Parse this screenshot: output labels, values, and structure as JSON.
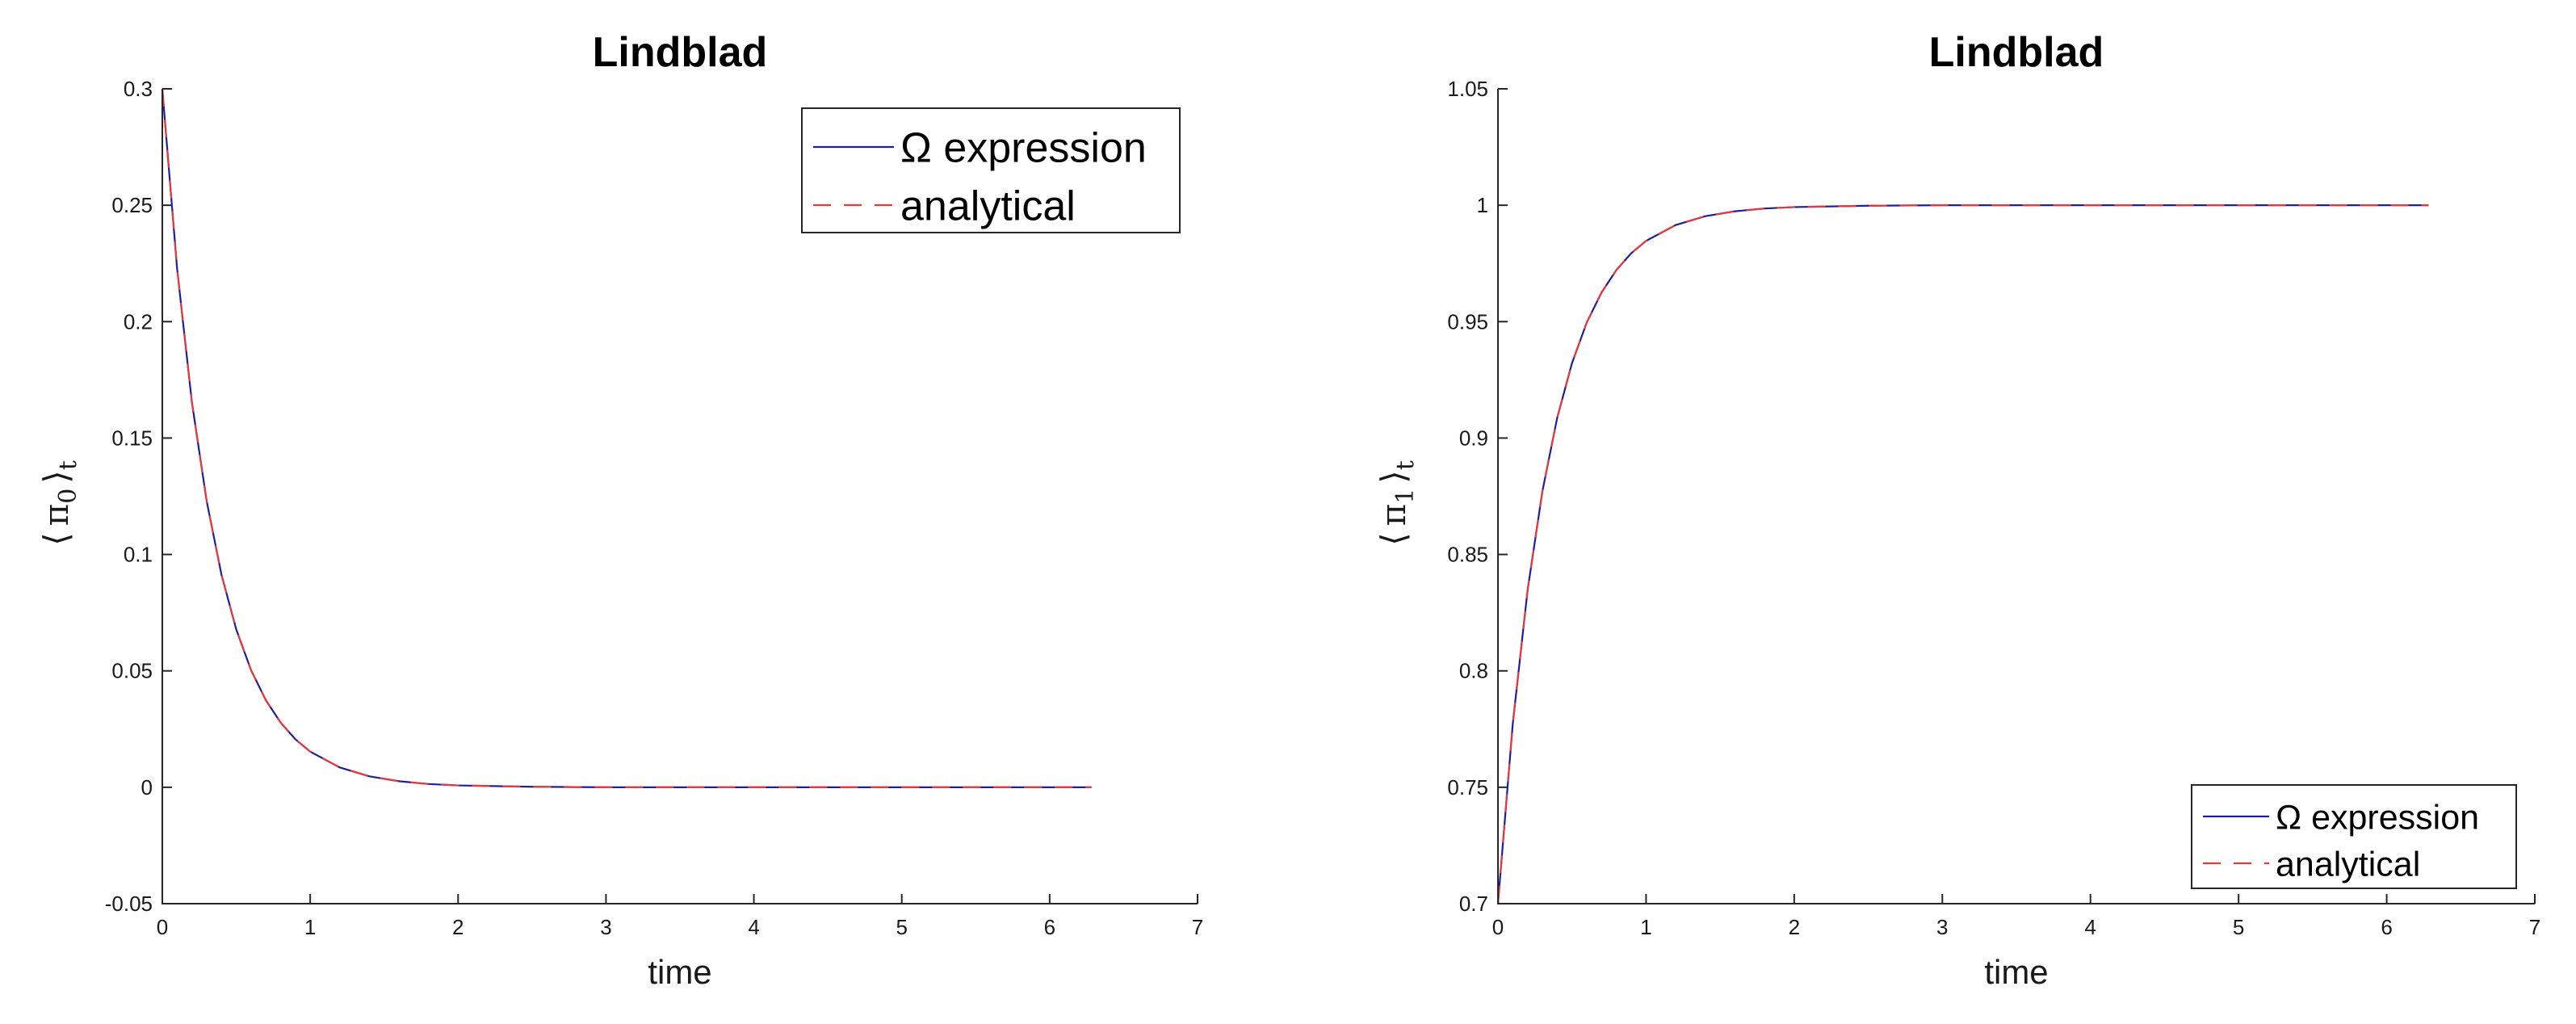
{
  "chart_data": [
    {
      "type": "line",
      "title": "Lindblad",
      "xlabel": "time",
      "ylabel": "⟨ π₀ ⟩ₜ",
      "ylabel_parts": {
        "open": "⟨",
        "symbol": "π",
        "sub": "0",
        "close": "⟩",
        "outer_sub": "t"
      },
      "xlim": [
        0,
        7
      ],
      "ylim": [
        -0.05,
        0.3
      ],
      "xticks": [
        0,
        1,
        2,
        3,
        4,
        5,
        6,
        7
      ],
      "xtick_labels": [
        "0",
        "1",
        "2",
        "3",
        "4",
        "5",
        "6",
        "7"
      ],
      "yticks": [
        -0.05,
        0,
        0.05,
        0.1,
        0.15,
        0.2,
        0.25,
        0.3
      ],
      "ytick_labels": [
        "-0.05",
        "0",
        "0.05",
        "0.1",
        "0.15",
        "0.2",
        "0.25",
        "0.3"
      ],
      "grid": false,
      "legend": "top-right",
      "series": [
        {
          "name": "Ω expression",
          "color": "#1f1f9e",
          "style": "solid",
          "x": [
            0,
            0.1,
            0.2,
            0.3,
            0.4,
            0.5,
            0.6,
            0.7,
            0.8,
            0.9,
            1.0,
            1.2,
            1.4,
            1.6,
            1.8,
            2.0,
            2.5,
            3.0,
            3.5,
            4.0,
            4.5,
            5.0,
            5.5,
            6.0,
            6.283
          ],
          "y": [
            0.3,
            0.2228,
            0.1654,
            0.1229,
            0.0913,
            0.0678,
            0.0503,
            0.0374,
            0.0278,
            0.0206,
            0.0153,
            0.0085,
            0.0047,
            0.0026,
            0.0014,
            0.0008,
            0.0002,
            0.0,
            0.0,
            0.0,
            0.0,
            0.0,
            0.0,
            0.0,
            0.0
          ]
        },
        {
          "name": "analytical",
          "color": "#e8393a",
          "style": "dashed",
          "x": [
            0,
            0.1,
            0.2,
            0.3,
            0.4,
            0.5,
            0.6,
            0.7,
            0.8,
            0.9,
            1.0,
            1.2,
            1.4,
            1.6,
            1.8,
            2.0,
            2.5,
            3.0,
            3.5,
            4.0,
            4.5,
            5.0,
            5.5,
            6.0,
            6.283
          ],
          "y": [
            0.3,
            0.2228,
            0.1654,
            0.1229,
            0.0913,
            0.0678,
            0.0503,
            0.0374,
            0.0278,
            0.0206,
            0.0153,
            0.0085,
            0.0047,
            0.0026,
            0.0014,
            0.0008,
            0.0002,
            0.0,
            0.0,
            0.0,
            0.0,
            0.0,
            0.0,
            0.0,
            0.0
          ]
        }
      ]
    },
    {
      "type": "line",
      "title": "Lindblad",
      "xlabel": "time",
      "ylabel": "⟨ π₁ ⟩ₜ",
      "ylabel_parts": {
        "open": "⟨",
        "symbol": "π",
        "sub": "1",
        "close": "⟩",
        "outer_sub": "t"
      },
      "xlim": [
        0,
        7
      ],
      "ylim": [
        0.7,
        1.05
      ],
      "xticks": [
        0,
        1,
        2,
        3,
        4,
        5,
        6,
        7
      ],
      "xtick_labels": [
        "0",
        "1",
        "2",
        "3",
        "4",
        "5",
        "6",
        "7"
      ],
      "yticks": [
        0.7,
        0.75,
        0.8,
        0.85,
        0.9,
        0.95,
        1.0,
        1.05
      ],
      "ytick_labels": [
        "0.7",
        "0.75",
        "0.8",
        "0.85",
        "0.9",
        "0.95",
        "1",
        "1.05"
      ],
      "grid": false,
      "legend": "bottom-right",
      "series": [
        {
          "name": "Ω expression",
          "color": "#1f1f9e",
          "style": "solid",
          "x": [
            0,
            0.1,
            0.2,
            0.3,
            0.4,
            0.5,
            0.6,
            0.7,
            0.8,
            0.9,
            1.0,
            1.2,
            1.4,
            1.6,
            1.8,
            2.0,
            2.5,
            3.0,
            3.5,
            4.0,
            4.5,
            5.0,
            5.5,
            6.0,
            6.283
          ],
          "y": [
            0.7,
            0.7772,
            0.8346,
            0.8771,
            0.9087,
            0.9322,
            0.9497,
            0.9626,
            0.9722,
            0.9794,
            0.9847,
            0.9915,
            0.9953,
            0.9974,
            0.9986,
            0.9992,
            0.9998,
            1.0,
            1.0,
            1.0,
            1.0,
            1.0,
            1.0,
            1.0,
            1.0
          ]
        },
        {
          "name": "analytical",
          "color": "#e8393a",
          "style": "dashed",
          "x": [
            0,
            0.1,
            0.2,
            0.3,
            0.4,
            0.5,
            0.6,
            0.7,
            0.8,
            0.9,
            1.0,
            1.2,
            1.4,
            1.6,
            1.8,
            2.0,
            2.5,
            3.0,
            3.5,
            4.0,
            4.5,
            5.0,
            5.5,
            6.0,
            6.283
          ],
          "y": [
            0.7,
            0.7772,
            0.8346,
            0.8771,
            0.9087,
            0.9322,
            0.9497,
            0.9626,
            0.9722,
            0.9794,
            0.9847,
            0.9915,
            0.9953,
            0.9974,
            0.9986,
            0.9992,
            0.9998,
            1.0,
            1.0,
            1.0,
            1.0,
            1.0,
            1.0,
            1.0,
            1.0
          ]
        }
      ]
    }
  ]
}
